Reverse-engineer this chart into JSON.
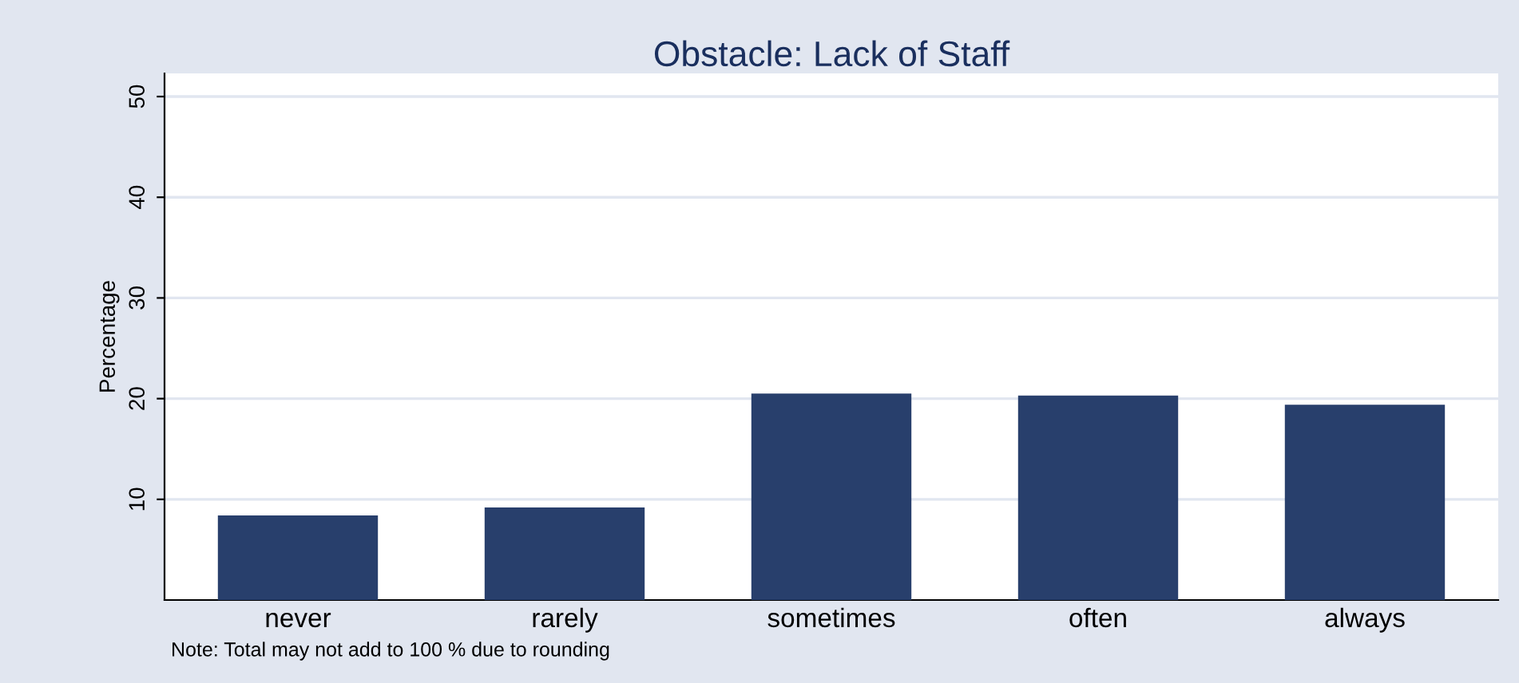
{
  "chart_data": {
    "type": "bar",
    "title": "Obstacle: Lack of Staff",
    "ylabel": "Percentage",
    "categories": [
      "never",
      "rarely",
      "sometimes",
      "often",
      "always"
    ],
    "values": [
      8.4,
      9.2,
      20.5,
      20.3,
      19.4
    ],
    "color": "#283f6c",
    "ylim": [
      0,
      52.3
    ],
    "yticks": [
      10,
      20,
      30,
      40,
      50
    ],
    "grid": "y",
    "annotations": [
      "Note: Total may not add to 100 % due to rounding"
    ]
  }
}
